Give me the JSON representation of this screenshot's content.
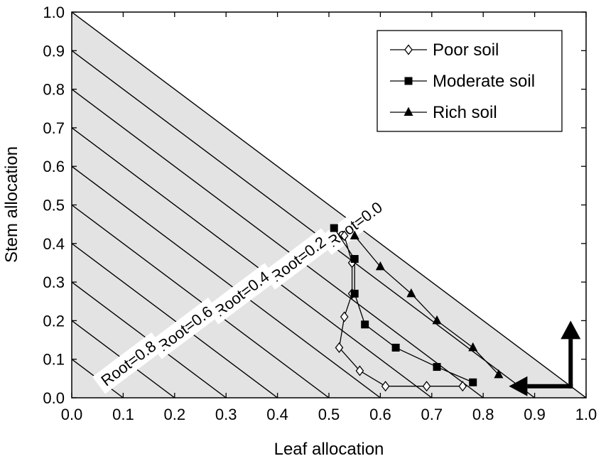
{
  "chart_data": {
    "type": "line",
    "xlabel": "Leaf allocation",
    "ylabel": "Stem allocation",
    "xlim": [
      0,
      1
    ],
    "ylim": [
      0,
      1
    ],
    "x_ticks": [
      "0.0",
      "0.1",
      "0.2",
      "0.3",
      "0.4",
      "0.5",
      "0.6",
      "0.7",
      "0.8",
      "0.9",
      "1.0"
    ],
    "y_ticks": [
      "0.0",
      "0.1",
      "0.2",
      "0.3",
      "0.4",
      "0.5",
      "0.6",
      "0.7",
      "0.8",
      "0.9",
      "1.0"
    ],
    "grid": false,
    "legend_position": "top-right",
    "shaded_region": "leaf + stem <= 1",
    "shade_color": "#e3e3e3",
    "root_isolines": [
      0.0,
      0.1,
      0.2,
      0.3,
      0.4,
      0.5,
      0.6,
      0.7,
      0.8,
      0.9
    ],
    "root_labels": [
      "Root=0.0",
      "Root=0.2",
      "Root=0.4",
      "Root=0.6",
      "Root=0.8"
    ],
    "series": [
      {
        "name": "Poor soil",
        "marker": "diamond-open",
        "x": [
          0.53,
          0.545,
          0.545,
          0.53,
          0.52,
          0.56,
          0.61,
          0.69,
          0.76
        ],
        "y": [
          0.42,
          0.35,
          0.27,
          0.21,
          0.13,
          0.07,
          0.03,
          0.03,
          0.03
        ]
      },
      {
        "name": "Moderate soil",
        "marker": "square-filled",
        "x": [
          0.51,
          0.55,
          0.55,
          0.57,
          0.63,
          0.71,
          0.78
        ],
        "y": [
          0.44,
          0.36,
          0.27,
          0.19,
          0.13,
          0.08,
          0.04
        ]
      },
      {
        "name": "Rich soil",
        "marker": "triangle-filled",
        "x": [
          0.55,
          0.6,
          0.66,
          0.71,
          0.78,
          0.83
        ],
        "y": [
          0.42,
          0.34,
          0.27,
          0.2,
          0.13,
          0.06
        ]
      }
    ],
    "arrows": [
      {
        "from": [
          0.97,
          0.03
        ],
        "to": [
          0.97,
          0.2
        ]
      },
      {
        "from": [
          0.97,
          0.03
        ],
        "to": [
          0.85,
          0.03
        ]
      }
    ]
  }
}
